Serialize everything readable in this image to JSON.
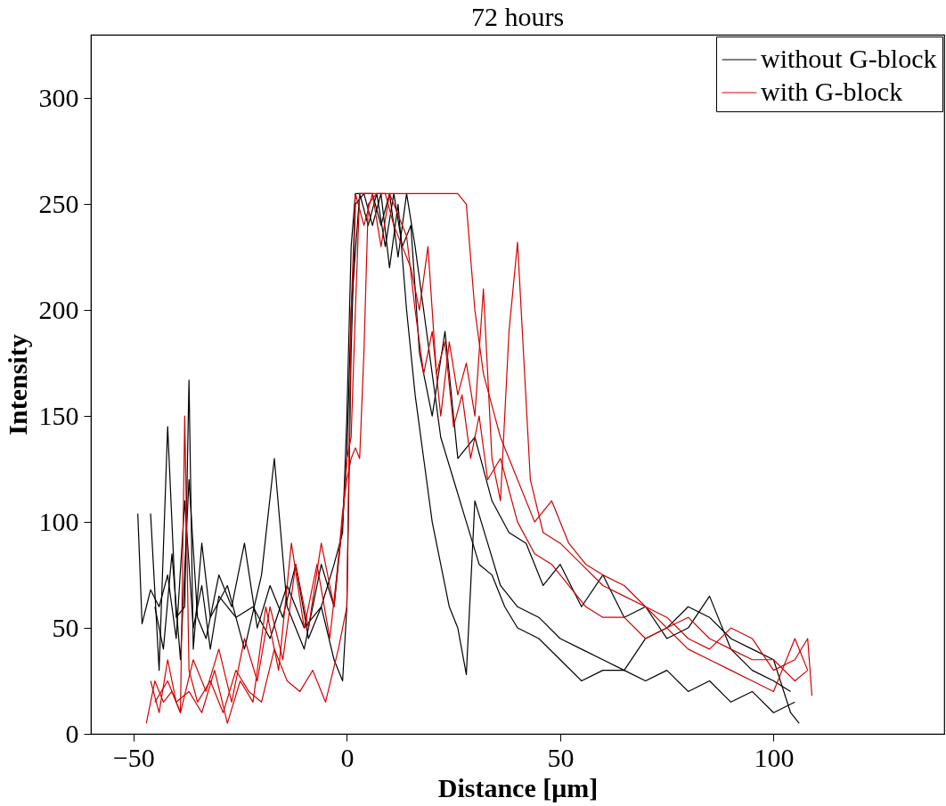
{
  "chart_data": {
    "type": "line",
    "title": "72 hours",
    "xlabel": "Distance [μm]",
    "ylabel": "Intensity",
    "xlim": [
      -60,
      140
    ],
    "xticks": [
      -50,
      0,
      50,
      100
    ],
    "ylim": [
      0,
      330
    ],
    "yticks": [
      0,
      50,
      100,
      150,
      200,
      250,
      300
    ],
    "grid": false,
    "legend": "top right",
    "marker": "none",
    "line_style": "solid",
    "series": [
      {
        "name": "without G-block",
        "color": "#000000",
        "x": [
          -49,
          -48,
          -46,
          -44,
          -42,
          -40,
          -38,
          -36,
          -34,
          -32,
          -30,
          -26,
          -22,
          -18,
          -14,
          -10,
          -6,
          -3,
          -1,
          0,
          1,
          2,
          4,
          6,
          8,
          10,
          12,
          14,
          16,
          18,
          20,
          22,
          24,
          26,
          28,
          30,
          33,
          36,
          40,
          45,
          50,
          55,
          60,
          65,
          70,
          75,
          80,
          85,
          90,
          95,
          100,
          105
        ],
        "values": [
          104,
          52,
          68,
          60,
          75,
          45,
          110,
          50,
          70,
          40,
          65,
          55,
          60,
          45,
          70,
          50,
          60,
          80,
          95,
          150,
          230,
          255,
          255,
          240,
          255,
          220,
          250,
          200,
          160,
          130,
          100,
          80,
          60,
          50,
          28,
          110,
          90,
          70,
          60,
          55,
          45,
          40,
          35,
          30,
          25,
          30,
          20,
          25,
          15,
          20,
          10,
          15
        ]
      },
      {
        "color": "#000000",
        "x": [
          -46,
          -44,
          -42,
          -40,
          -38,
          -37,
          -36,
          -34,
          -32,
          -28,
          -24,
          -20,
          -17,
          -14,
          -10,
          -6,
          -3,
          -1,
          0,
          1,
          3,
          5,
          7,
          9,
          11,
          13,
          15,
          17,
          20,
          23,
          26,
          30,
          34,
          38,
          42,
          46,
          50,
          55,
          60,
          65,
          70,
          75,
          80,
          85,
          90,
          95,
          100,
          104
        ],
        "values": [
          104,
          30,
          145,
          55,
          60,
          167,
          40,
          90,
          55,
          70,
          40,
          75,
          130,
          60,
          40,
          80,
          60,
          100,
          130,
          200,
          255,
          240,
          255,
          230,
          255,
          230,
          240,
          180,
          150,
          190,
          130,
          140,
          110,
          95,
          90,
          70,
          80,
          60,
          75,
          55,
          60,
          45,
          50,
          65,
          40,
          30,
          25,
          20
        ]
      },
      {
        "color": "#000000",
        "x": [
          -45,
          -43,
          -41,
          -39,
          -37,
          -35,
          -33,
          -30,
          -27,
          -24,
          -21,
          -18,
          -15,
          -12,
          -9,
          -6,
          -3,
          -1,
          0,
          1,
          2,
          4,
          6,
          8,
          10,
          12,
          14,
          16,
          18,
          20,
          22,
          25,
          28,
          31,
          34,
          37,
          40,
          45,
          50,
          55,
          60,
          65,
          70,
          75,
          80,
          85,
          90,
          95,
          100,
          104,
          106
        ],
        "values": [
          60,
          40,
          85,
          35,
          120,
          55,
          45,
          75,
          60,
          90,
          50,
          70,
          55,
          80,
          45,
          60,
          35,
          25,
          60,
          180,
          250,
          255,
          255,
          240,
          255,
          225,
          255,
          230,
          200,
          170,
          140,
          120,
          100,
          80,
          75,
          60,
          50,
          45,
          35,
          25,
          30,
          30,
          45,
          50,
          60,
          55,
          45,
          40,
          35,
          10,
          5
        ]
      },
      {
        "name": "with G-block",
        "color": "#d40000",
        "x": [
          -47,
          -45,
          -43,
          -41,
          -39,
          -38,
          -37,
          -35,
          -32,
          -29,
          -26,
          -23,
          -20,
          -17,
          -14,
          -11,
          -8,
          -5,
          -2,
          0,
          1,
          2,
          4,
          6,
          8,
          10,
          12,
          14,
          16,
          18,
          20,
          22,
          24,
          26,
          28,
          30,
          32,
          34,
          36,
          38,
          40,
          43,
          46,
          50,
          55,
          60,
          65,
          70,
          75,
          80,
          85,
          90,
          95,
          100,
          105,
          108,
          109
        ],
        "values": [
          5,
          25,
          15,
          20,
          10,
          150,
          30,
          15,
          25,
          10,
          30,
          20,
          15,
          40,
          25,
          20,
          30,
          15,
          40,
          60,
          200,
          255,
          240,
          255,
          230,
          255,
          245,
          235,
          200,
          170,
          190,
          150,
          185,
          160,
          175,
          150,
          210,
          130,
          110,
          190,
          232,
          120,
          95,
          90,
          80,
          70,
          65,
          60,
          55,
          45,
          40,
          50,
          45,
          30,
          35,
          45,
          18
        ]
      },
      {
        "color": "#d40000",
        "x": [
          -46,
          -44,
          -42,
          -40,
          -37,
          -34,
          -31,
          -28,
          -25,
          -22,
          -19,
          -16,
          -13,
          -10,
          -7,
          -4,
          -1,
          0,
          1,
          2,
          3,
          4,
          5,
          6,
          8,
          10,
          14,
          18,
          22,
          26,
          28,
          30,
          32,
          34,
          36,
          40,
          44,
          48,
          52,
          56,
          60,
          65,
          70,
          75,
          80,
          85,
          90,
          95,
          100,
          105,
          108
        ],
        "values": [
          25,
          10,
          35,
          15,
          20,
          10,
          30,
          5,
          25,
          15,
          60,
          30,
          90,
          50,
          80,
          45,
          100,
          130,
          140,
          200,
          255,
          255,
          255,
          255,
          255,
          255,
          255,
          255,
          255,
          255,
          250,
          200,
          170,
          155,
          140,
          120,
          100,
          110,
          90,
          80,
          75,
          70,
          60,
          50,
          55,
          45,
          40,
          35,
          35,
          25,
          30
        ]
      },
      {
        "color": "#d40000",
        "x": [
          -45,
          -42,
          -39,
          -36,
          -33,
          -30,
          -27,
          -24,
          -21,
          -18,
          -15,
          -12,
          -9,
          -6,
          -3,
          -1,
          0,
          1,
          2,
          3,
          4,
          5,
          7,
          9,
          11,
          13,
          15,
          17,
          19,
          21,
          23,
          25,
          27,
          29,
          31,
          33,
          36,
          40,
          44,
          48,
          52,
          56,
          60,
          65,
          70,
          75,
          80,
          85,
          90,
          95,
          100,
          105,
          108
        ],
        "values": [
          15,
          25,
          10,
          35,
          20,
          40,
          15,
          45,
          25,
          60,
          35,
          80,
          50,
          90,
          60,
          105,
          120,
          130,
          135,
          130,
          180,
          250,
          255,
          255,
          240,
          230,
          220,
          200,
          230,
          170,
          185,
          145,
          160,
          130,
          150,
          120,
          130,
          100,
          85,
          80,
          70,
          60,
          55,
          55,
          45,
          50,
          40,
          35,
          30,
          25,
          20,
          45,
          30
        ]
      }
    ]
  }
}
